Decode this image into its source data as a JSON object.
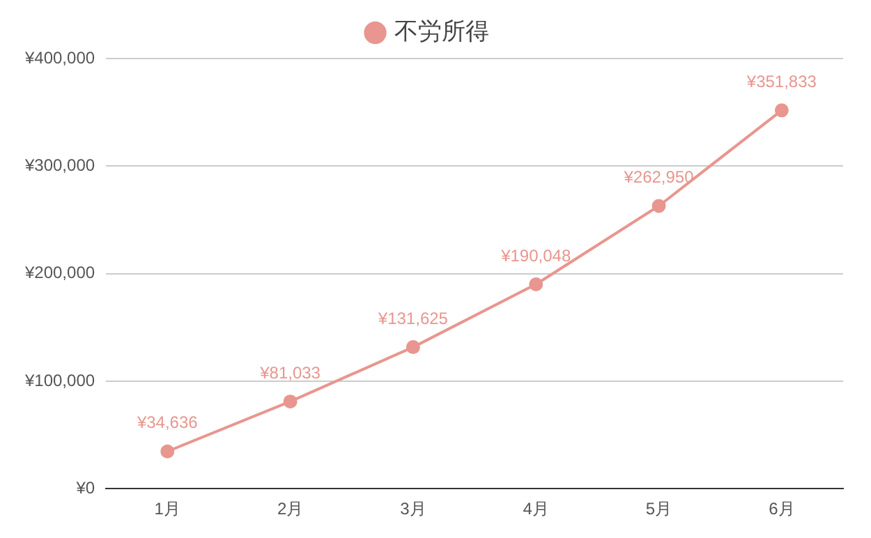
{
  "chart_data": {
    "type": "line",
    "categories": [
      "1月",
      "2月",
      "3月",
      "4月",
      "5月",
      "6月"
    ],
    "series": [
      {
        "name": "不労所得",
        "color": "#e8968f",
        "values": [
          34636,
          81033,
          131625,
          190048,
          262950,
          351833
        ],
        "value_labels": [
          "¥34,636",
          "¥81,033",
          "¥131,625",
          "¥190,048",
          "¥262,950",
          "¥351,833"
        ]
      }
    ],
    "ylim": [
      0,
      400000
    ],
    "yticks": [
      {
        "value": 0,
        "label": "¥0"
      },
      {
        "value": 100000,
        "label": "¥100,000"
      },
      {
        "value": 200000,
        "label": "¥200,000"
      },
      {
        "value": 300000,
        "label": "¥300,000"
      },
      {
        "value": 400000,
        "label": "¥400,000"
      }
    ],
    "grid": "y",
    "legend": "top",
    "marker": "circle",
    "line_style": "solid"
  }
}
